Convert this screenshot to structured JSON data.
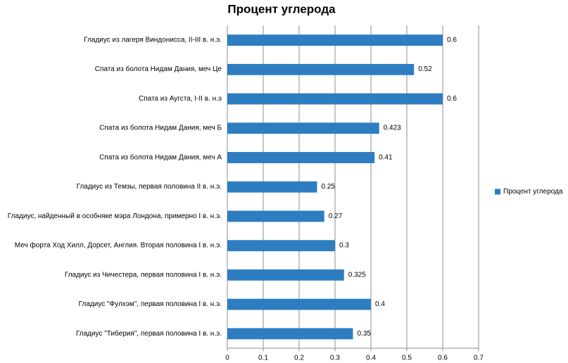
{
  "chart_data": {
    "type": "bar",
    "orientation": "horizontal",
    "title": "Процент углерода",
    "categories": [
      "Гладиус из лагеря Виндонисса, II-III в. н.э.",
      "Спата из болота Нидам Дания, меч Це",
      "Спата из Аугста, I-II в. н.э",
      "Спата из болота Нидам Дания, меч Б",
      "Спата из болота Нидам Дания, меч А",
      "Гладиус из Темзы, первая половина II в. н.э.",
      "Гладиус, найденный в особняке мэра Лондона, примерно I в. н.э.",
      "Меч форта Ход Хилл, Дорсет, Англия. Вторая половина I в. н.э.",
      "Гладиус из Чичестера, первая половина I в. н.э.",
      "Гладиус \"Фулхэм\", первая половина I в. н.э.",
      "Гладиус \"Тиберия\", первая половина I в. н.э."
    ],
    "series": [
      {
        "name": "Процент углерода",
        "color": "#2e7dc0",
        "values": [
          0.6,
          0.52,
          0.6,
          0.423,
          0.41,
          0.25,
          0.27,
          0.3,
          0.325,
          0.4,
          0.35
        ]
      }
    ],
    "xlim": [
      0,
      0.7
    ],
    "xticks": [
      0,
      0.1,
      0.2,
      0.3,
      0.4,
      0.5,
      0.6,
      0.7
    ],
    "grid": true,
    "legend": "right"
  }
}
